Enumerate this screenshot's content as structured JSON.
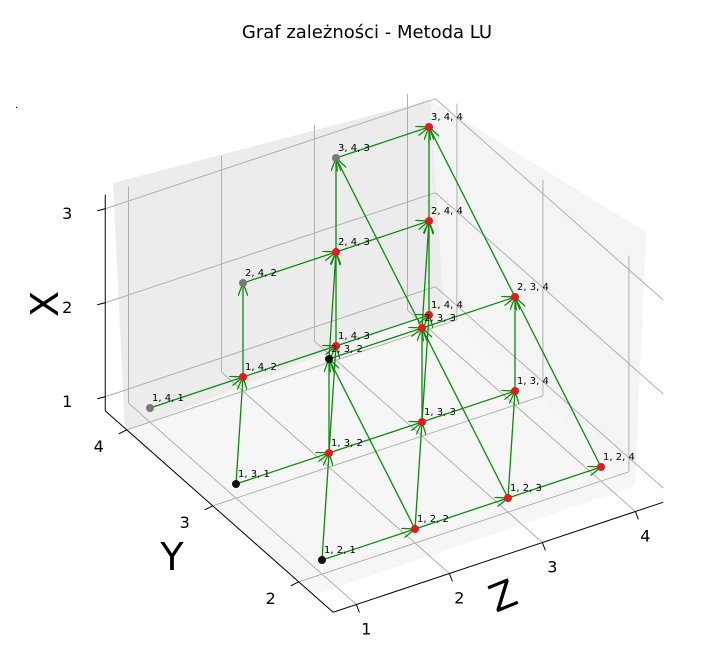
{
  "chart_data": {
    "type": "scatter3d",
    "title": "Graf zależności - Metoda LU",
    "xlabel": "Z",
    "ylabel": "Y",
    "zlabel": "X",
    "x_ticks": [
      "1",
      "2",
      "3",
      "4"
    ],
    "y_ticks": [
      "2",
      "3",
      "4"
    ],
    "z_ticks": [
      "1",
      "2",
      "3"
    ],
    "stray_mark": ".",
    "colors": {
      "red": "#e41a1c",
      "black": "#111111",
      "gray": "#777777",
      "arrow": "#0a8a0a"
    },
    "points": [
      {
        "label": "1, 2, 1",
        "color": "black"
      },
      {
        "label": "1, 3, 1",
        "color": "black"
      },
      {
        "label": "1, 4, 1",
        "color": "gray"
      },
      {
        "label": "1, 2, 2",
        "color": "red"
      },
      {
        "label": "1, 3, 2",
        "color": "red"
      },
      {
        "label": "1, 4, 2",
        "color": "red"
      },
      {
        "label": "1, 2, 3",
        "color": "red"
      },
      {
        "label": "1, 3, 3",
        "color": "red"
      },
      {
        "label": "1, 4, 3",
        "color": "red"
      },
      {
        "label": "1, 2, 4",
        "color": "red"
      },
      {
        "label": "1, 3, 4",
        "color": "red"
      },
      {
        "label": "1, 4, 4",
        "color": "red"
      },
      {
        "label": "2, 3, 2",
        "color": "black"
      },
      {
        "label": "2, 4, 2",
        "color": "gray"
      },
      {
        "label": "2, 3, 3",
        "color": "red"
      },
      {
        "label": "2, 4, 3",
        "color": "red"
      },
      {
        "label": "2, 3, 4",
        "color": "red"
      },
      {
        "label": "2, 4, 4",
        "color": "red"
      },
      {
        "label": "3, 4, 3",
        "color": "gray"
      },
      {
        "label": "3, 4, 4",
        "color": "red"
      }
    ],
    "edges": [
      [
        "1, 2, 1",
        "1, 2, 2"
      ],
      [
        "1, 2, 2",
        "1, 2, 3"
      ],
      [
        "1, 2, 3",
        "1, 2, 4"
      ],
      [
        "1, 3, 1",
        "1, 3, 2"
      ],
      [
        "1, 3, 2",
        "1, 3, 3"
      ],
      [
        "1, 3, 3",
        "1, 3, 4"
      ],
      [
        "1, 4, 1",
        "1, 4, 2"
      ],
      [
        "1, 4, 2",
        "1, 4, 3"
      ],
      [
        "1, 4, 3",
        "1, 4, 4"
      ],
      [
        "1, 2, 1",
        "1, 3, 2"
      ],
      [
        "1, 3, 1",
        "1, 4, 2"
      ],
      [
        "1, 2, 2",
        "1, 3, 3"
      ],
      [
        "1, 3, 2",
        "1, 4, 3"
      ],
      [
        "1, 2, 3",
        "1, 3, 4"
      ],
      [
        "1, 3, 3",
        "1, 4, 4"
      ],
      [
        "1, 2, 2",
        "2, 3, 2"
      ],
      [
        "1, 2, 3",
        "2, 3, 3"
      ],
      [
        "1, 2, 4",
        "2, 3, 4"
      ],
      [
        "1, 3, 2",
        "2, 3, 2"
      ],
      [
        "1, 3, 3",
        "2, 3, 3"
      ],
      [
        "1, 3, 4",
        "2, 3, 4"
      ],
      [
        "1, 4, 2",
        "2, 4, 2"
      ],
      [
        "1, 4, 3",
        "2, 4, 3"
      ],
      [
        "1, 4, 4",
        "2, 4, 4"
      ],
      [
        "2, 3, 2",
        "2, 3, 3"
      ],
      [
        "2, 3, 3",
        "2, 3, 4"
      ],
      [
        "2, 4, 2",
        "2, 4, 3"
      ],
      [
        "2, 4, 3",
        "2, 4, 4"
      ],
      [
        "2, 3, 2",
        "2, 4, 3"
      ],
      [
        "2, 3, 3",
        "2, 4, 4"
      ],
      [
        "2, 3, 3",
        "3, 4, 3"
      ],
      [
        "2, 3, 4",
        "3, 4, 4"
      ],
      [
        "2, 4, 3",
        "3, 4, 3"
      ],
      [
        "2, 4, 4",
        "3, 4, 4"
      ],
      [
        "3, 4, 3",
        "3, 4, 4"
      ]
    ]
  }
}
